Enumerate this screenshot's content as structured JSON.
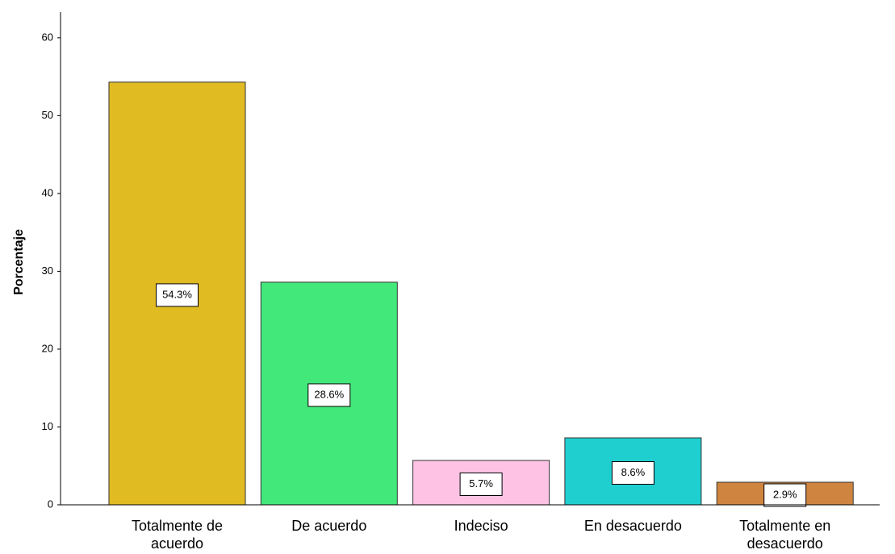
{
  "chart_data": {
    "type": "bar",
    "y_label": "Porcentaje",
    "categories": [
      [
        "Totalmente de",
        "acuerdo"
      ],
      [
        "De acuerdo"
      ],
      [
        "Indeciso"
      ],
      [
        "En desacuerdo"
      ],
      [
        "Totalmente en",
        "desacuerdo"
      ]
    ],
    "values": [
      54.3,
      28.6,
      5.7,
      8.6,
      2.9
    ],
    "value_labels": [
      "54.3%",
      "28.6%",
      "5.7%",
      "8.6%",
      "2.9%"
    ],
    "colors": [
      "#e0bb22",
      "#43e87b",
      "#fec3e4",
      "#1fcfcf",
      "#cf8540"
    ],
    "ylim": [
      0,
      63.3
    ],
    "yticks": [
      0,
      10,
      20,
      30,
      40,
      50,
      60
    ]
  }
}
